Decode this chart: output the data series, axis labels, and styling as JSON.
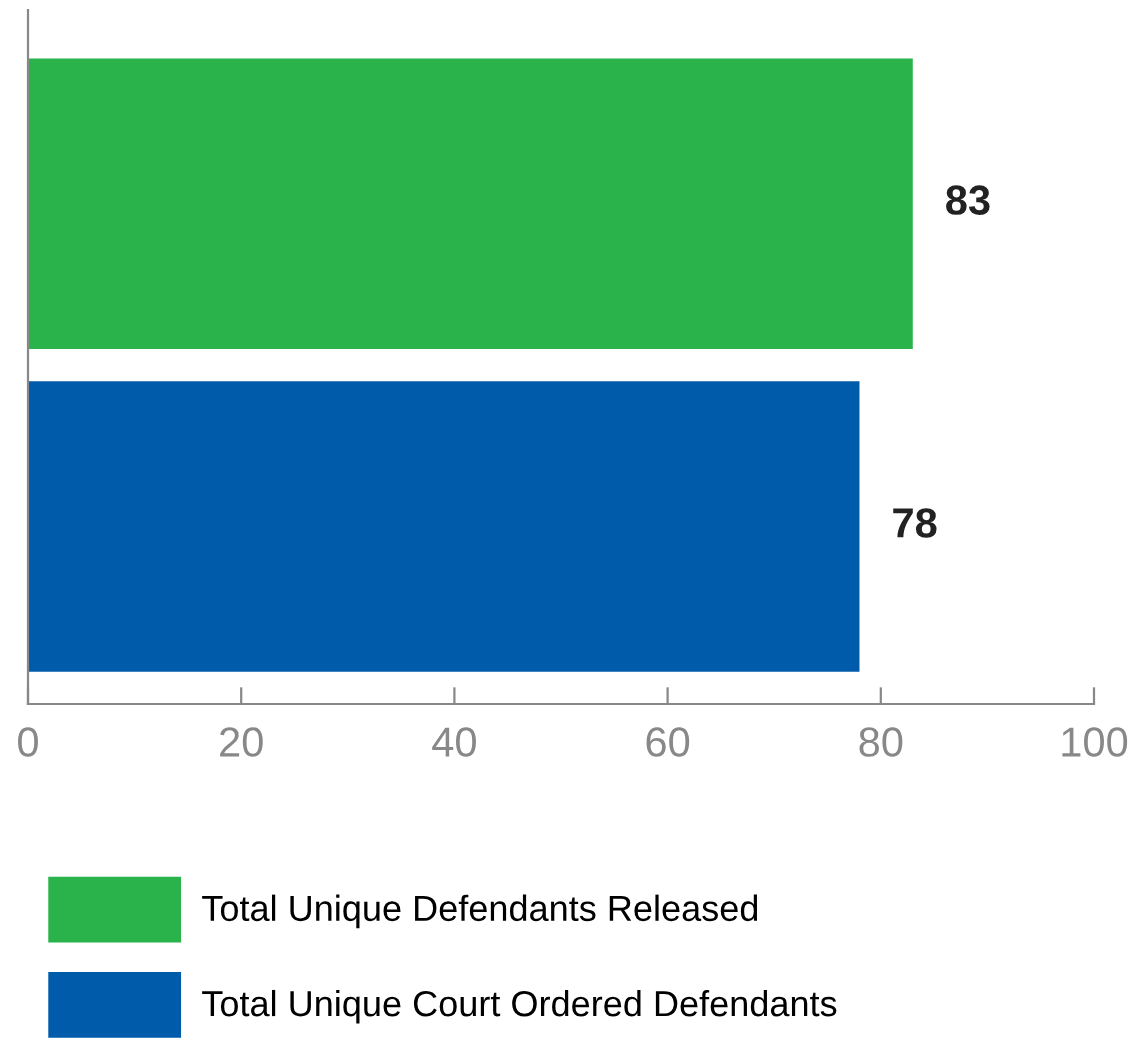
{
  "chart_data": {
    "type": "bar",
    "orientation": "horizontal",
    "categories": [
      null,
      null
    ],
    "series": [
      {
        "name": "Total Unique Defendants Released",
        "color": "#2ab34b",
        "values": [
          83,
          null
        ]
      },
      {
        "name": "Total Unique Court Ordered Defendants",
        "color": "#005baa",
        "values": [
          null,
          78
        ]
      }
    ],
    "xlim": [
      0,
      100
    ],
    "xticks": [
      0,
      20,
      40,
      60,
      80,
      100
    ],
    "data_labels": true,
    "legend": "bottom",
    "grid": false
  }
}
